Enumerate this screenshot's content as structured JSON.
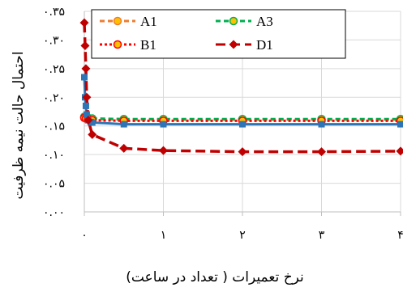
{
  "chart_data": {
    "type": "line",
    "xlabel": "نرخ تعمیرات ( تعداد در ساعت)",
    "ylabel": "احتمال حالت نیمه ظرفیت",
    "xlim": [
      0,
      4
    ],
    "ylim": [
      0,
      0.35
    ],
    "x_ticks": [
      {
        "value": 0,
        "label": "۰"
      },
      {
        "value": 1,
        "label": "۱"
      },
      {
        "value": 2,
        "label": "۲"
      },
      {
        "value": 3,
        "label": "۳"
      },
      {
        "value": 4,
        "label": "۴"
      }
    ],
    "y_ticks": [
      {
        "value": 0,
        "label": "۰.۰۰"
      },
      {
        "value": 0.05,
        "label": "۰.۰۵"
      },
      {
        "value": 0.1,
        "label": "۰.۱۰"
      },
      {
        "value": 0.15,
        "label": "۰.۱۵"
      },
      {
        "value": 0.2,
        "label": "۰.۲۰"
      },
      {
        "value": 0.25,
        "label": "۰.۲۵"
      },
      {
        "value": 0.3,
        "label": "۰.۳۰"
      },
      {
        "value": 0.35,
        "label": "۰.۳۵"
      }
    ],
    "grid": true,
    "legend_position": "top",
    "series": [
      {
        "name": "A1",
        "color": "#ED7D31",
        "dash": "6,4",
        "marker": "circle",
        "x": [
          0,
          0.02,
          0.05,
          0.1,
          0.5,
          1,
          2,
          3,
          4
        ],
        "y": [
          0.165,
          0.165,
          0.163,
          0.162,
          0.161,
          0.161,
          0.161,
          0.161,
          0.161
        ]
      },
      {
        "name": "A3",
        "color": "#00B050",
        "dash": "6,4",
        "marker": "circle",
        "x": [
          0,
          0.02,
          0.05,
          0.1,
          0.5,
          1,
          2,
          3,
          4
        ],
        "y": [
          0.166,
          0.165,
          0.164,
          0.163,
          0.162,
          0.162,
          0.162,
          0.162,
          0.162
        ]
      },
      {
        "name": "B1",
        "color": "#FF0000",
        "dash": "3,3",
        "marker": "circle",
        "x": [
          0,
          0.02,
          0.05,
          0.1,
          0.5,
          1,
          2,
          3,
          4
        ],
        "y": [
          0.164,
          0.163,
          0.162,
          0.16,
          0.159,
          0.159,
          0.159,
          0.159,
          0.159
        ]
      },
      {
        "name": "",
        "color": "#2E75B6",
        "dash": "",
        "marker": "square",
        "x": [
          0,
          0.01,
          0.02,
          0.03,
          0.05,
          0.08,
          0.1,
          0.5,
          1,
          2,
          3,
          4
        ],
        "y": [
          0.235,
          0.2,
          0.185,
          0.17,
          0.16,
          0.157,
          0.156,
          0.153,
          0.153,
          0.153,
          0.153,
          0.153
        ]
      },
      {
        "name": "D1",
        "color": "#C00000",
        "dash": "12,6",
        "marker": "diamond",
        "x": [
          0,
          0.01,
          0.02,
          0.03,
          0.05,
          0.1,
          0.5,
          1,
          2,
          3,
          4
        ],
        "y": [
          0.33,
          0.29,
          0.25,
          0.2,
          0.16,
          0.135,
          0.111,
          0.107,
          0.105,
          0.105,
          0.106
        ]
      }
    ]
  }
}
